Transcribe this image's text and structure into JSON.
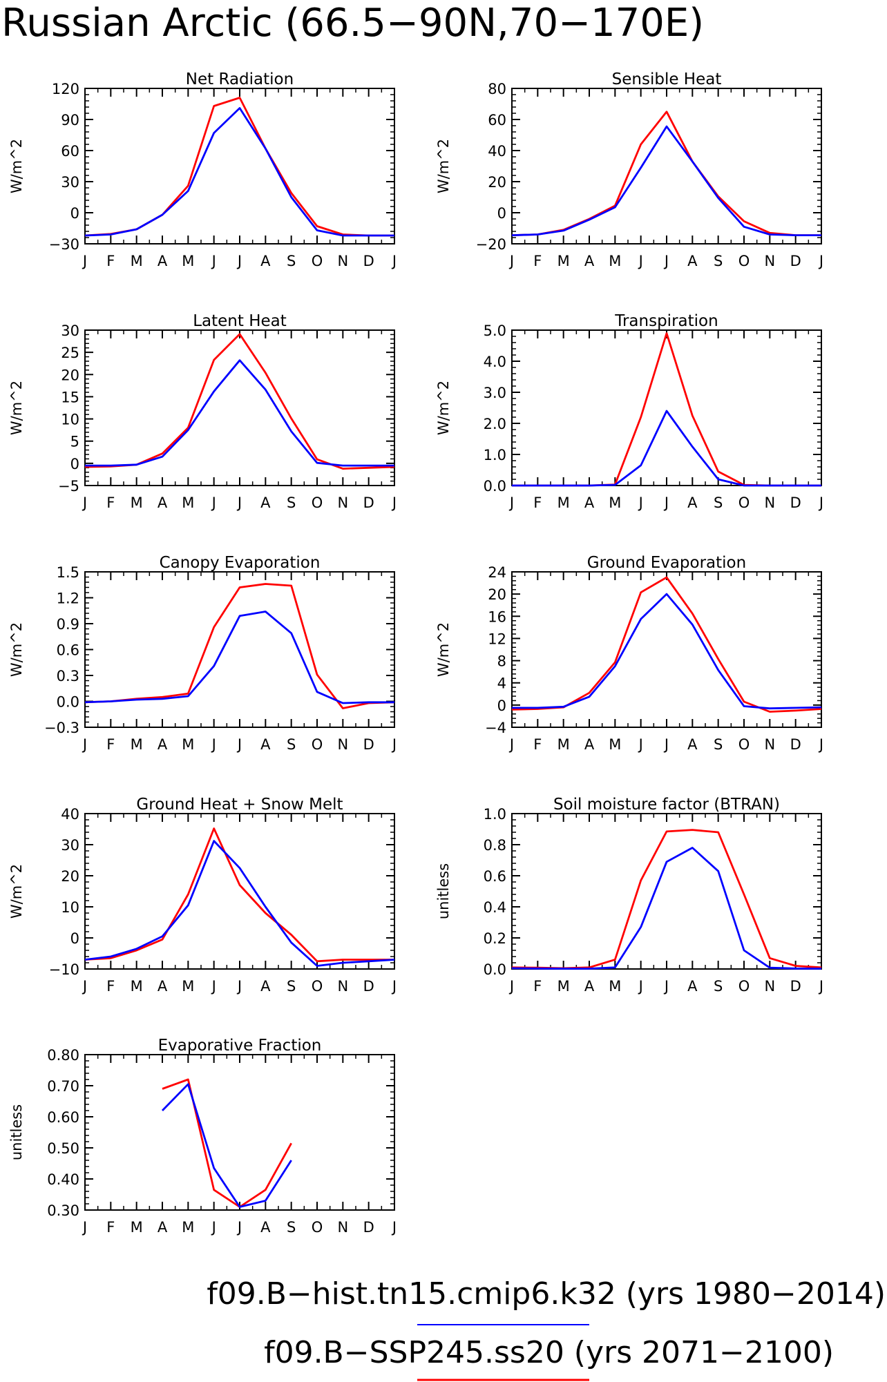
{
  "title": "Russian Arctic (66.5−90N,70−170E)",
  "months": [
    "J",
    "F",
    "M",
    "A",
    "M",
    "J",
    "J",
    "A",
    "S",
    "O",
    "N",
    "D",
    "J"
  ],
  "colors": {
    "hist": "#0000ff",
    "ssp": "#ff0000",
    "axis": "#000000"
  },
  "legend": [
    {
      "label": "f09.B−hist.tn15.cmip6.k32 (yrs 1980−2014)",
      "color": "#0000ff"
    },
    {
      "label": "f09.B−SSP245.ss20 (yrs 2071−2100)",
      "color": "#ff0000"
    }
  ],
  "chart_data": [
    {
      "type": "line",
      "title": "Net Radiation",
      "ylabel": "W/m^2",
      "ylim": [
        -30,
        120
      ],
      "yticks": [
        "-30",
        "0",
        "30",
        "60",
        "90",
        "120"
      ],
      "series": [
        {
          "name": "f09.B−hist.tn15.cmip6.k32",
          "color": "#0000ff",
          "values": [
            -22,
            -21,
            -16,
            -2,
            21,
            77,
            101,
            62,
            15,
            -17,
            -22,
            -22,
            -22
          ]
        },
        {
          "name": "f09.B−SSP245.ss20",
          "color": "#ff0000",
          "values": [
            -22,
            -20.5,
            -16,
            -2,
            26,
            103,
            111,
            62,
            19,
            -13,
            -21,
            -22,
            -22
          ]
        }
      ]
    },
    {
      "type": "line",
      "title": "Sensible Heat",
      "ylabel": "W/m^2",
      "ylim": [
        -20,
        80
      ],
      "yticks": [
        "-20",
        "0",
        "20",
        "40",
        "60",
        "80"
      ],
      "series": [
        {
          "name": "f09.B−hist.tn15.cmip6.k32",
          "color": "#0000ff",
          "values": [
            -14.5,
            -14,
            -11.5,
            -4.5,
            3.5,
            29,
            55.5,
            33,
            9.5,
            -9,
            -14,
            -14.5,
            -14.5
          ]
        },
        {
          "name": "f09.B−SSP245.ss20",
          "color": "#ff0000",
          "values": [
            -14.5,
            -14,
            -11,
            -4,
            4.5,
            44,
            65,
            33,
            10.5,
            -5.5,
            -13,
            -14.5,
            -14.5
          ]
        }
      ]
    },
    {
      "type": "line",
      "title": "Latent Heat",
      "ylabel": "W/m^2",
      "ylim": [
        -5,
        30
      ],
      "yticks": [
        "-5",
        "0",
        "5",
        "10",
        "15",
        "20",
        "25",
        "30"
      ],
      "series": [
        {
          "name": "f09.B−hist.tn15.cmip6.k32",
          "color": "#0000ff",
          "values": [
            -0.5,
            -0.5,
            -0.3,
            1.5,
            7.5,
            16.2,
            23.2,
            16.6,
            7.2,
            0.1,
            -0.5,
            -0.5,
            -0.5
          ]
        },
        {
          "name": "f09.B−SSP245.ss20",
          "color": "#ff0000",
          "values": [
            -0.8,
            -0.7,
            -0.3,
            2.2,
            8,
            23.3,
            29.1,
            20.4,
            10.1,
            0.9,
            -1.2,
            -1,
            -0.8
          ]
        }
      ]
    },
    {
      "type": "line",
      "title": "Transpiration",
      "ylabel": "W/m^2",
      "ylim": [
        0,
        5
      ],
      "yticks": [
        "0.0",
        "1.0",
        "2.0",
        "3.0",
        "4.0",
        "5.0"
      ],
      "series": [
        {
          "name": "f09.B−hist.tn15.cmip6.k32",
          "color": "#0000ff",
          "values": [
            0,
            0,
            0,
            0,
            0.02,
            0.65,
            2.4,
            1.25,
            0.2,
            0,
            0,
            0,
            0
          ]
        },
        {
          "name": "f09.B−SSP245.ss20",
          "color": "#ff0000",
          "values": [
            0,
            0,
            0,
            0,
            0.03,
            2.2,
            4.9,
            2.25,
            0.45,
            0.02,
            0,
            0,
            0
          ]
        }
      ]
    },
    {
      "type": "line",
      "title": "Canopy Evaporation",
      "ylabel": "W/m^2",
      "ylim": [
        -0.3,
        1.5
      ],
      "yticks": [
        "-0.3",
        "0.0",
        "0.3",
        "0.6",
        "0.9",
        "1.2",
        "1.5"
      ],
      "series": [
        {
          "name": "f09.B−hist.tn15.cmip6.k32",
          "color": "#0000ff",
          "values": [
            -0.01,
            0,
            0.02,
            0.03,
            0.06,
            0.41,
            0.99,
            1.04,
            0.79,
            0.11,
            -0.02,
            -0.01,
            -0.01
          ]
        },
        {
          "name": "f09.B−SSP245.ss20",
          "color": "#ff0000",
          "values": [
            -0.01,
            0,
            0.03,
            0.05,
            0.09,
            0.86,
            1.32,
            1.36,
            1.34,
            0.31,
            -0.08,
            -0.02,
            -0.01
          ]
        }
      ]
    },
    {
      "type": "line",
      "title": "Ground Evaporation",
      "ylabel": "W/m^2",
      "ylim": [
        -4,
        24
      ],
      "yticks": [
        "-4",
        "0",
        "4",
        "8",
        "12",
        "16",
        "20",
        "24"
      ],
      "series": [
        {
          "name": "f09.B−hist.tn15.cmip6.k32",
          "color": "#0000ff",
          "values": [
            -0.5,
            -0.5,
            -0.3,
            1.5,
            7,
            15.5,
            20,
            14.5,
            6.3,
            -0.2,
            -0.6,
            -0.5,
            -0.4
          ]
        },
        {
          "name": "f09.B−SSP245.ss20",
          "color": "#ff0000",
          "values": [
            -0.8,
            -0.7,
            -0.4,
            2.2,
            7.7,
            20.3,
            23,
            16.5,
            8.3,
            0.6,
            -1.2,
            -1,
            -0.7
          ]
        }
      ]
    },
    {
      "type": "line",
      "title": "Ground Heat + Snow Melt",
      "ylabel": "W/m^2",
      "ylim": [
        -10,
        40
      ],
      "yticks": [
        "-10",
        "0",
        "10",
        "20",
        "30",
        "40"
      ],
      "series": [
        {
          "name": "f09.B−hist.tn15.cmip6.k32",
          "color": "#0000ff",
          "values": [
            -7,
            -6,
            -3.5,
            0.5,
            10.5,
            31.2,
            22.5,
            10,
            -1.5,
            -9,
            -8,
            -7.5,
            -7
          ]
        },
        {
          "name": "f09.B−SSP245.ss20",
          "color": "#ff0000",
          "values": [
            -7,
            -6.5,
            -4,
            -0.5,
            14,
            35.2,
            17,
            8,
            1,
            -7.5,
            -7,
            -7,
            -7
          ]
        }
      ]
    },
    {
      "type": "line",
      "title": "Soil moisture factor (BTRAN)",
      "ylabel": "unitless",
      "ylim": [
        0,
        1
      ],
      "yticks": [
        "0.0",
        "0.2",
        "0.4",
        "0.6",
        "0.8",
        "1.0"
      ],
      "series": [
        {
          "name": "f09.B−hist.tn15.cmip6.k32",
          "color": "#0000ff",
          "values": [
            0.005,
            0.003,
            0.002,
            0.002,
            0.01,
            0.27,
            0.69,
            0.78,
            0.63,
            0.12,
            0.008,
            0.003,
            0.002
          ]
        },
        {
          "name": "f09.B−SSP245.ss20",
          "color": "#ff0000",
          "values": [
            0.01,
            0.008,
            0.005,
            0.01,
            0.06,
            0.57,
            0.885,
            0.895,
            0.88,
            0.48,
            0.07,
            0.02,
            0.01
          ]
        }
      ]
    },
    {
      "type": "line",
      "title": "Evaporative Fraction",
      "ylabel": "unitless",
      "ylim": [
        0.3,
        0.8
      ],
      "yticks": [
        "0.30",
        "0.40",
        "0.50",
        "0.60",
        "0.70",
        "0.80"
      ],
      "series": [
        {
          "name": "f09.B−hist.tn15.cmip6.k32",
          "color": "#0000ff",
          "values": [
            null,
            null,
            null,
            0.62,
            0.705,
            0.435,
            0.31,
            0.33,
            0.46,
            null,
            null,
            null,
            null
          ]
        },
        {
          "name": "f09.B−SSP245.ss20",
          "color": "#ff0000",
          "values": [
            null,
            null,
            null,
            0.69,
            0.72,
            0.365,
            0.31,
            0.365,
            0.515,
            null,
            null,
            null,
            null
          ]
        }
      ]
    }
  ]
}
